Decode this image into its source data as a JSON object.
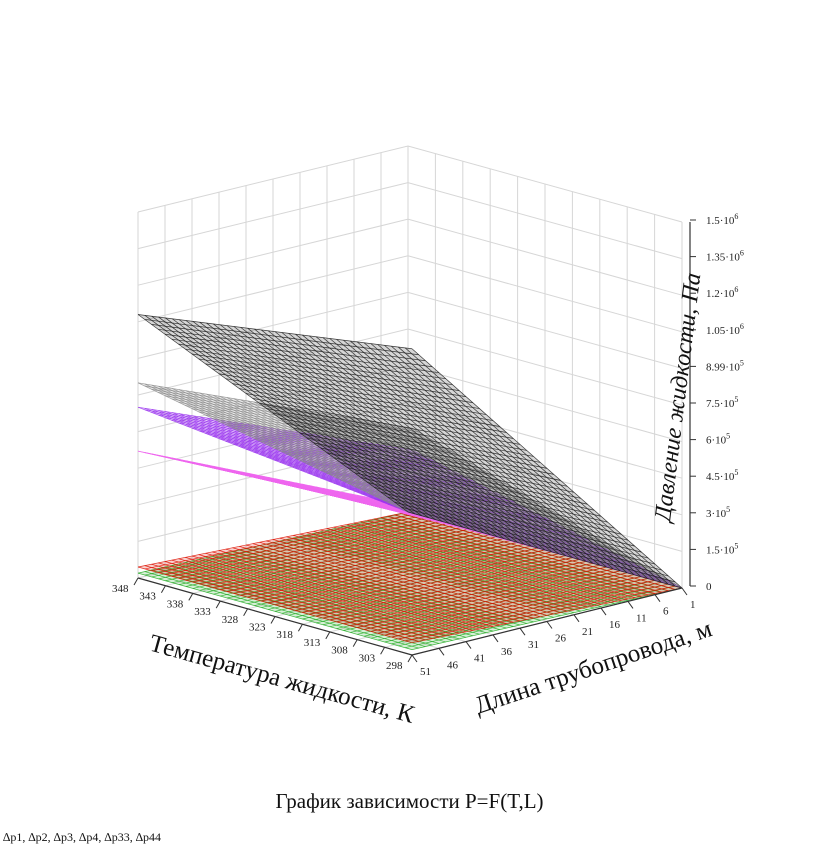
{
  "chart_data": {
    "type": "surface",
    "title": "График зависимости P=F(T,L)",
    "series_line": "∆p1, ∆p2, ∆p3, ∆p4, ∆p33, ∆p44",
    "x_axis": {
      "label": "Температура жидкости, К",
      "ticks": [
        "348",
        "343",
        "338",
        "333",
        "328",
        "323",
        "318",
        "313",
        "308",
        "303",
        "298"
      ],
      "range": [
        348,
        298
      ]
    },
    "y_axis": {
      "label": "Длина трубопровода, м",
      "ticks": [
        "1",
        "6",
        "11",
        "16",
        "21",
        "26",
        "31",
        "36",
        "41",
        "46",
        "51"
      ],
      "range": [
        1,
        51
      ]
    },
    "z_axis": {
      "label": "Давление жидкости, Па",
      "ticks": [
        {
          "base": "0",
          "exp": ""
        },
        {
          "base": "1.5·10",
          "exp": "5"
        },
        {
          "base": "3·10",
          "exp": "5"
        },
        {
          "base": "4.5·10",
          "exp": "5"
        },
        {
          "base": "6·10",
          "exp": "5"
        },
        {
          "base": "7.5·10",
          "exp": "5"
        },
        {
          "base": "8.99·10",
          "exp": "5"
        },
        {
          "base": "1.05·10",
          "exp": "6"
        },
        {
          "base": "1.2·10",
          "exp": "6"
        },
        {
          "base": "1.35·10",
          "exp": "6"
        },
        {
          "base": "1.5·10",
          "exp": "6"
        }
      ],
      "range": [
        0,
        1500000
      ]
    },
    "surfaces": [
      {
        "name": "∆p1",
        "color": "#1a1a1a",
        "z_at_L51_T348": 1080000,
        "z_at_L51_T298": 1255000
      },
      {
        "name": "∆p2",
        "color": "#8a8a8a",
        "z_at_L51_T348": 800000,
        "z_at_L51_T298": 930000
      },
      {
        "name": "∆p3",
        "color": "#9933ee",
        "z_at_L51_T348": 700000,
        "z_at_L51_T298": 840000
      },
      {
        "name": "∆p4",
        "color": "#ee66ee",
        "z_at_L51_T348": 520000,
        "z_at_L51_T298": 610000
      },
      {
        "name": "∆p33",
        "color": "#dd1100",
        "z_at_L51_T348": 45000,
        "z_at_L51_T298": 50000
      },
      {
        "name": "∆p44",
        "color": "#22aa22",
        "z_at_L51_T348": 20000,
        "z_at_L51_T298": 22000
      }
    ],
    "grid": true
  }
}
